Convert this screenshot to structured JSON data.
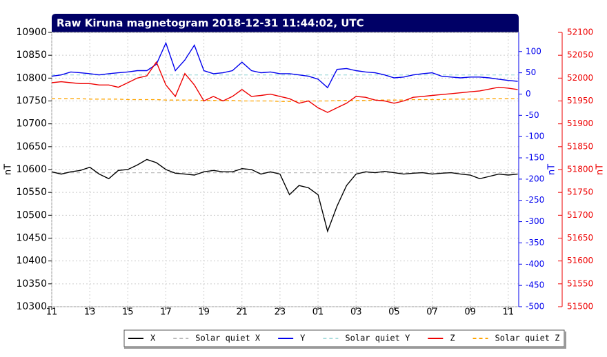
{
  "chart_data": {
    "type": "line",
    "title": "Raw Kiruna magnetogram 2018-12-31 11:44:02, UTC",
    "ylabel": "nT",
    "y2label": "nT",
    "y3label": "nT",
    "xlim": [
      0,
      24.55
    ],
    "xticks": [
      {
        "value": 0,
        "label": "11"
      },
      {
        "value": 2,
        "label": "13"
      },
      {
        "value": 4,
        "label": "15"
      },
      {
        "value": 6,
        "label": "17"
      },
      {
        "value": 8,
        "label": "19"
      },
      {
        "value": 10,
        "label": "21"
      },
      {
        "value": 12,
        "label": "23"
      },
      {
        "value": 14,
        "label": "01"
      },
      {
        "value": 16,
        "label": "03"
      },
      {
        "value": 18,
        "label": "05"
      },
      {
        "value": 20,
        "label": "07"
      },
      {
        "value": 22,
        "label": "09"
      },
      {
        "value": 24,
        "label": "11"
      }
    ],
    "ylim": [
      10300,
      10900
    ],
    "yticks": [
      10300,
      10350,
      10400,
      10450,
      10500,
      10550,
      10600,
      10650,
      10700,
      10750,
      10800,
      10850,
      10900
    ],
    "y2lim": [
      -500,
      145
    ],
    "y2ticks": [
      -500,
      -450,
      -400,
      -350,
      -300,
      -250,
      -200,
      -150,
      -100,
      -50,
      0,
      50,
      100
    ],
    "y3lim": [
      51500,
      52100
    ],
    "y3ticks": [
      51500,
      51550,
      51600,
      51650,
      51700,
      51750,
      51800,
      51850,
      51900,
      51950,
      52000,
      52050,
      52100
    ],
    "grid": true,
    "x": [
      0,
      0.5,
      1,
      1.5,
      2,
      2.5,
      3,
      3.5,
      4,
      4.5,
      5,
      5.5,
      6,
      6.5,
      7,
      7.5,
      8,
      8.5,
      9,
      9.5,
      10,
      10.5,
      11,
      11.5,
      12,
      12.5,
      13,
      13.5,
      14,
      14.5,
      15,
      15.5,
      16,
      16.5,
      17,
      17.5,
      18,
      18.5,
      19,
      19.5,
      20,
      20.5,
      21,
      21.5,
      22,
      22.5,
      23,
      23.5,
      24,
      24.5
    ],
    "series": [
      {
        "name": "X",
        "color": "#000000",
        "axis": "y",
        "dash": false,
        "values": [
          10595,
          10590,
          10595,
          10598,
          10605,
          10590,
          10580,
          10598,
          10600,
          10610,
          10622,
          10615,
          10600,
          10592,
          10590,
          10588,
          10595,
          10598,
          10595,
          10595,
          10602,
          10600,
          10590,
          10595,
          10590,
          10545,
          10565,
          10560,
          10545,
          10465,
          10520,
          10565,
          10590,
          10595,
          10593,
          10596,
          10593,
          10590,
          10592,
          10593,
          10590,
          10592,
          10593,
          10590,
          10588,
          10580,
          10585,
          10590,
          10588,
          10590
        ]
      },
      {
        "name": "Solar quiet X",
        "color": "#bbbbbb",
        "axis": "y",
        "dash": true,
        "values": [
          10593,
          10593,
          10593,
          10593,
          10593,
          10593,
          10593,
          10593,
          10593,
          10593,
          10593,
          10593,
          10593,
          10593,
          10593,
          10593,
          10593,
          10593,
          10593,
          10593,
          10593,
          10593,
          10593,
          10593,
          10593,
          10593,
          10593,
          10593,
          10593,
          10593,
          10593,
          10593,
          10593,
          10593,
          10593,
          10593,
          10593,
          10593,
          10593,
          10593,
          10593,
          10593,
          10593,
          10593,
          10593,
          10593,
          10593,
          10593,
          10593,
          10593
        ]
      },
      {
        "name": "Y",
        "color": "#0000ee",
        "axis": "y2",
        "dash": false,
        "values": [
          42,
          45,
          52,
          50,
          48,
          45,
          48,
          50,
          52,
          55,
          55,
          70,
          120,
          55,
          80,
          115,
          55,
          48,
          50,
          55,
          75,
          55,
          50,
          52,
          48,
          48,
          45,
          42,
          35,
          15,
          58,
          60,
          55,
          52,
          50,
          45,
          38,
          40,
          45,
          48,
          50,
          42,
          40,
          38,
          40,
          40,
          38,
          35,
          32,
          30
        ]
      },
      {
        "name": "Solar quiet Y",
        "color": "#aadddd",
        "axis": "y2",
        "dash": true,
        "values": [
          45,
          45,
          45,
          45,
          45,
          45,
          45,
          45,
          45,
          45,
          45,
          45,
          45,
          45,
          45,
          45,
          45,
          45,
          45,
          45,
          45,
          45,
          45,
          45,
          45,
          45,
          45,
          45,
          45,
          45,
          45,
          45,
          45,
          45,
          45,
          45,
          45,
          45,
          45,
          45,
          45,
          45,
          45,
          45,
          45,
          45,
          45,
          45,
          45,
          45
        ]
      },
      {
        "name": "Z",
        "color": "#ee0000",
        "axis": "y3",
        "dash": false,
        "values": [
          51990,
          51992,
          51990,
          51988,
          51988,
          51985,
          51985,
          51980,
          51990,
          52000,
          52005,
          52035,
          51985,
          51960,
          52010,
          51985,
          51950,
          51960,
          51950,
          51960,
          51975,
          51960,
          51962,
          51965,
          51960,
          51955,
          51945,
          51950,
          51935,
          51925,
          51935,
          51945,
          51960,
          51958,
          51952,
          51950,
          51945,
          51950,
          51958,
          51960,
          51962,
          51964,
          51966,
          51968,
          51970,
          51972,
          51976,
          51980,
          51978,
          51975
        ]
      },
      {
        "name": "Solar quiet Z",
        "color": "#ffa500",
        "axis": "y3",
        "dash": true,
        "values": [
          51955,
          51955,
          51955,
          51955,
          51954,
          51954,
          51954,
          51954,
          51953,
          51953,
          51953,
          51953,
          51952,
          51952,
          51952,
          51952,
          51951,
          51951,
          51951,
          51951,
          51950,
          51950,
          51950,
          51950,
          51949,
          51949,
          51950,
          51950,
          51950,
          51950,
          51951,
          51951,
          51951,
          51951,
          51952,
          51952,
          51952,
          51952,
          51953,
          51953,
          51953,
          51953,
          51954,
          51954,
          51954,
          51954,
          51955,
          51955,
          51955,
          51955
        ]
      }
    ]
  }
}
